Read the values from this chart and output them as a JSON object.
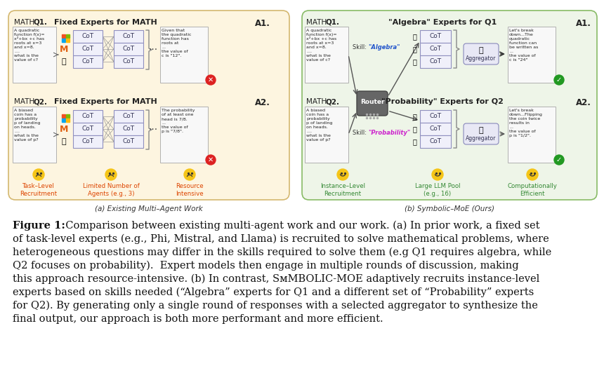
{
  "bg_color": "#ffffff",
  "fig_width": 8.6,
  "fig_height": 5.42,
  "left_panel_bg": "#fdf5e0",
  "left_panel_edge": "#d4b870",
  "right_panel_bg": "#eef5e8",
  "right_panel_edge": "#88bb66",
  "left_panel_label": "(a) Existing Multi–Agent Work",
  "right_panel_label": "(b) Symbolic–MoE (Ours)",
  "negative_labels": [
    "Task–Level\nRecruitment",
    "Limited Number of\nAgents (e.g., 3)",
    "Resource\nIntensive"
  ],
  "positive_labels": [
    "Instance–Level\nRecruitment",
    "Large LLM Pool\n(e.g., 16)",
    "Computationally\nEfficient"
  ],
  "neg_color": "#dd4400",
  "pos_color": "#338833"
}
